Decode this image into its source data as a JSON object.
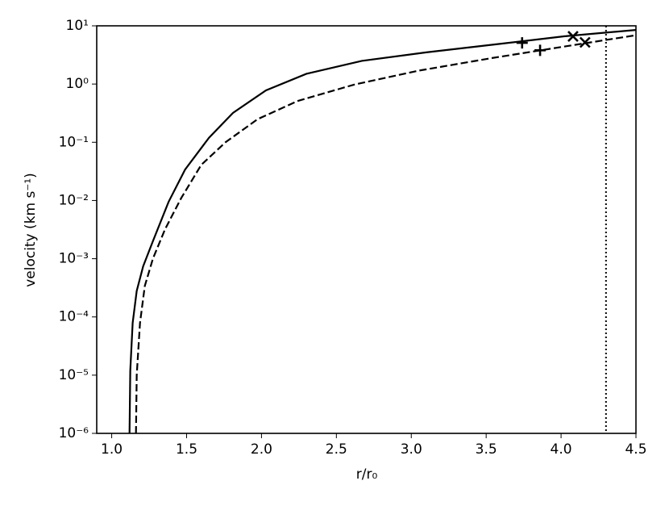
{
  "chart_data": {
    "type": "line",
    "xlabel": "r/r₀",
    "ylabel": "velocity (km s⁻¹)",
    "xlim": [
      0.9,
      4.5
    ],
    "ylim": [
      1e-06,
      10
    ],
    "log_y": true,
    "xticks": [
      {
        "value": 1,
        "label": "1.0"
      },
      1.5,
      {
        "value": 2,
        "label": "2.0"
      },
      2.5,
      {
        "value": 3,
        "label": "3.0"
      },
      3.5,
      {
        "value": 4,
        "label": "4.0"
      },
      4.5
    ],
    "yticks": [
      {
        "value": 1e-06,
        "label": "10⁻⁶"
      },
      {
        "value": 1e-05,
        "label": "10⁻⁵"
      },
      {
        "value": 0.0001,
        "label": "10⁻⁴"
      },
      {
        "value": 0.001,
        "label": "10⁻³"
      },
      {
        "value": 0.01,
        "label": "10⁻²"
      },
      {
        "value": 0.1,
        "label": "10⁻¹"
      },
      {
        "value": 1,
        "label": "10⁰"
      },
      {
        "value": 10,
        "label": "10¹"
      }
    ],
    "series": [
      {
        "color": "#000000",
        "linestyle": "solid",
        "x": [
          1.119,
          1.124,
          1.14,
          1.167,
          1.21,
          1.275,
          1.38,
          1.49,
          1.65,
          1.81,
          2.03,
          2.3,
          2.67,
          3.1,
          3.59,
          4.02,
          4.5
        ],
        "values": [
          1e-06,
          1.2e-05,
          7.9e-05,
          0.00028,
          0.00074,
          0.002,
          0.0095,
          0.034,
          0.12,
          0.32,
          0.78,
          1.5,
          2.5,
          3.5,
          4.9,
          6.6,
          8.5
        ]
      },
      {
        "color": "#000000",
        "linestyle": "dashed",
        "x": [
          1.162,
          1.167,
          1.189,
          1.221,
          1.275,
          1.356,
          1.464,
          1.598,
          1.76,
          1.975,
          2.24,
          2.62,
          3.05,
          3.54,
          4.02,
          4.5
        ],
        "values": [
          1e-06,
          1e-05,
          7.9e-05,
          0.00034,
          0.001,
          0.0032,
          0.011,
          0.041,
          0.1,
          0.25,
          0.51,
          0.98,
          1.7,
          2.8,
          4.4,
          6.9
        ]
      }
    ],
    "markers": [
      {
        "marker": "+",
        "color": "#000000",
        "x": [
          3.74,
          3.86
        ],
        "values": [
          5.1,
          3.8
        ]
      },
      {
        "marker": "x",
        "color": "#000000",
        "x": [
          4.08,
          4.16
        ],
        "values": [
          6.6,
          5.2
        ]
      }
    ],
    "vlines": [
      {
        "x": 4.3,
        "linestyle": "dotted",
        "color": "#000000"
      }
    ]
  }
}
